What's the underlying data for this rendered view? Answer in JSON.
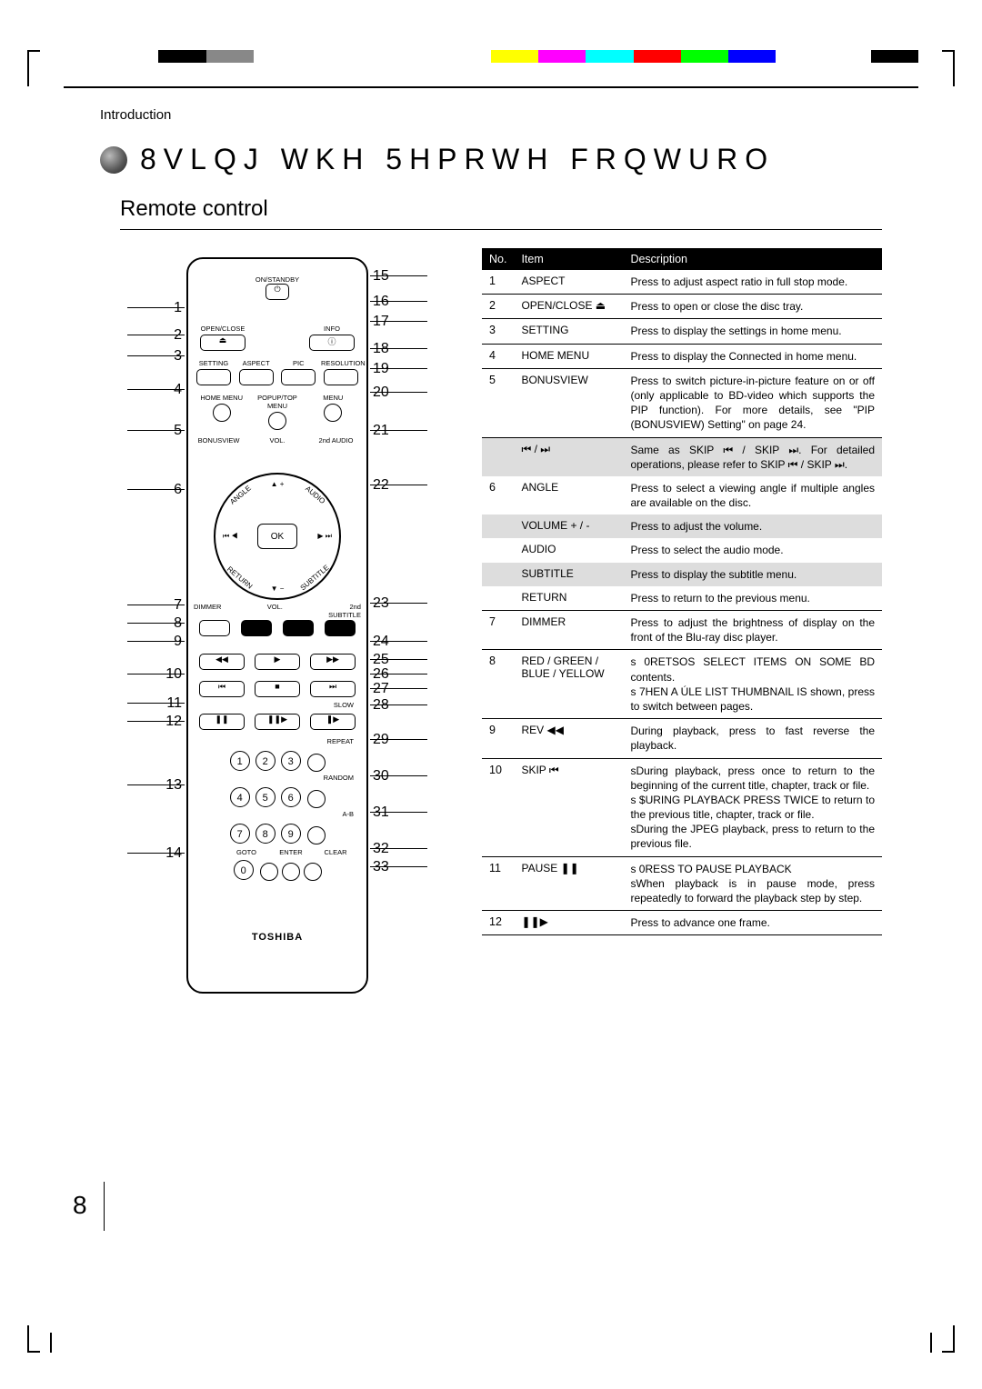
{
  "colorbar": [
    "#ffffff",
    "#ffffff",
    "#000000",
    "#888888",
    "#ffffff",
    "#ffffff",
    "#ffffff",
    "#ffffff",
    "#ffffff",
    "#ffff00",
    "#ff00ff",
    "#00ffff",
    "#ff0000",
    "#00ff00",
    "#0000ff",
    "#ffffff",
    "#ffffff",
    "#000000"
  ],
  "breadcrumb": "Introduction",
  "title": "8VLQJ WKH 5HPRWH FRQWURO",
  "subtitle": "Remote control",
  "left_numbers": [
    1,
    2,
    3,
    4,
    5,
    6,
    7,
    8,
    9,
    10,
    11,
    12,
    13,
    14
  ],
  "right_numbers": [
    15,
    16,
    17,
    18,
    19,
    20,
    21,
    22,
    23,
    24,
    25,
    26,
    27,
    28,
    29,
    30,
    31,
    32,
    33
  ],
  "remote": {
    "onstandby": "ON/STANDBY",
    "openclose": "OPEN/CLOSE",
    "info": "INFO",
    "row_setting": [
      "SETTING",
      "ASPECT",
      "PIC",
      "RESOLUTION"
    ],
    "row_home": [
      "HOME MENU",
      "POPUP/TOP MENU",
      "MENU"
    ],
    "bonusview": "BONUSVIEW",
    "vol": "VOL.",
    "audio2": "2nd AUDIO",
    "angle": "ANGLE",
    "audio": "AUDIO",
    "return": "RETURN",
    "subtitle": "SUBTITLE",
    "sub2nd": "2nd\nSUBTITLE",
    "dimmer": "DIMMER",
    "ok": "OK",
    "slow": "SLOW",
    "repeat": "REPEAT",
    "random": "RANDOM",
    "ab": "A-B",
    "bottom_row": [
      "GOTO",
      "ENTER",
      "CLEAR"
    ],
    "brand": "TOSHIBA"
  },
  "table": {
    "headers": [
      "No.",
      "Item",
      "Description"
    ],
    "rows": [
      {
        "no": "1",
        "item": "ASPECT",
        "desc": "Press to adjust aspect ratio in full stop mode."
      },
      {
        "no": "2",
        "item": "OPEN/CLOSE ⏏",
        "desc": "Press to open or close the disc tray."
      },
      {
        "no": "3",
        "item": "SETTING",
        "desc": "Press to display the settings in home menu."
      },
      {
        "no": "4",
        "item": "HOME MENU",
        "desc": "Press to display the Connected in home menu."
      },
      {
        "no": "5",
        "item": "BONUSVIEW",
        "desc": "Press to switch picture-in-picture feature on or off (only applicable to BD-video which supports the PIP function). For more details, see \"PIP (BONUSVIEW) Setting\" on page 24."
      },
      {
        "no": "",
        "item": "⏮ / ⏭",
        "desc": "Same as SKIP ⏮ / SKIP ⏭. For detailed operations, please refer to SKIP ⏮ / SKIP ⏭.",
        "shade": true,
        "nob": true,
        "group6": true
      },
      {
        "no": "6",
        "item": "ANGLE",
        "desc": "Press to select a viewing angle if multiple angles are available on the disc.",
        "nob": true
      },
      {
        "no": "",
        "item": "VOLUME + / -",
        "desc": "Press to adjust the volume.",
        "shade": true,
        "nob": true
      },
      {
        "no": "",
        "item": "AUDIO",
        "desc": "Press to select the audio mode.",
        "nob": true
      },
      {
        "no": "",
        "item": "SUBTITLE",
        "desc": "Press to display the subtitle menu.",
        "shade": true,
        "nob": true
      },
      {
        "no": "",
        "item": "RETURN",
        "desc": "Press to return to the previous menu."
      },
      {
        "no": "7",
        "item": "DIMMER",
        "desc": "Press to adjust the brightness of display on the front of the Blu-ray disc player."
      },
      {
        "no": "8",
        "item": "RED / GREEN / BLUE / YELLOW",
        "desc": "s   0RETSOS SELECT ITEMS ON SOME BD contents.\ns   7HEN A ÚLE LIST THUMBNAIL IS shown, press to switch between pages."
      },
      {
        "no": "9",
        "item": "REV ◀◀",
        "desc": "During playback, press to fast reverse the playback."
      },
      {
        "no": "10",
        "item": "SKIP ⏮",
        "desc": "sDuring playback, press once to return to the beginning of the current title, chapter, track or ﬁle.\ns   $URING PLAYBACK PRESS TWICE to return to the previous title, chapter, track or ﬁle.\nsDuring the JPEG playback, press to return to the previous ﬁle."
      },
      {
        "no": "11",
        "item": "PAUSE ❚❚",
        "desc": "s   0RESS TO PAUSE PLAYBACK\nsWhen playback is in pause mode, press repeatedly to forward the playback step by step."
      },
      {
        "no": "12",
        "item": "❚❚▶",
        "desc": "Press to advance one frame."
      }
    ]
  },
  "page_number": "8"
}
